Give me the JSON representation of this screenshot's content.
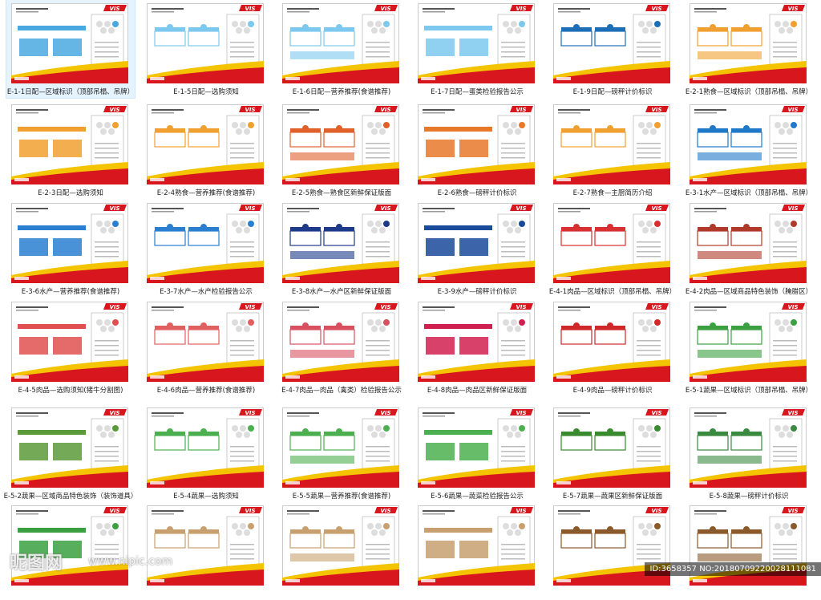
{
  "thumbnail_logo": "VIS",
  "items": [
    {
      "caption": "E-1-1日配—区域标识（顶部吊榻、吊牌）",
      "color": "#4aa8e0",
      "selected": true
    },
    {
      "caption": "E-1-5日配—选购须知",
      "color": "#7cc8ee"
    },
    {
      "caption": "E-1-6日配—营养推荐(食谱推荐)",
      "color": "#7cc8ee"
    },
    {
      "caption": "E-1-7日配—蛋类检验报告公示",
      "color": "#7cc8ee"
    },
    {
      "caption": "E-1-9日配—磅秤计价标识",
      "color": "#1c6fb6"
    },
    {
      "caption": "E-2-1熟食—区域标识（顶部吊榻、吊牌）",
      "color": "#f0a030"
    },
    {
      "caption": "E-2-3日配—选购须知",
      "color": "#f0a030"
    },
    {
      "caption": "E-2-4熟食—营养推荐(食谱推荐)",
      "color": "#f0a030"
    },
    {
      "caption": "E-2-5熟食—熟食区新鲜保证版面",
      "color": "#e0602a"
    },
    {
      "caption": "E-2-6熟食—磅秤计价标识",
      "color": "#e8782a"
    },
    {
      "caption": "E-2-7熟食—主厨简历介绍",
      "color": "#f0a030"
    },
    {
      "caption": "E-3-1水产—区域标识（顶部吊榻、吊牌）",
      "color": "#1f78c8"
    },
    {
      "caption": "E-3-6水产—营养推荐(食谱推荐)",
      "color": "#2a7fd0"
    },
    {
      "caption": "E-3-7水产—水产检验报告公示",
      "color": "#2a7fd0"
    },
    {
      "caption": "E-3-8水产—水产区新鲜保证版面",
      "color": "#1d3a8a"
    },
    {
      "caption": "E-3-9水产—磅秤计价标识",
      "color": "#1a4a9a"
    },
    {
      "caption": "E-4-1肉品—区域标识（顶部吊榻、吊牌）",
      "color": "#d83030"
    },
    {
      "caption": "E-4-2肉品—区域商品特色装饰（腌腊区）",
      "color": "#b03a2a"
    },
    {
      "caption": "E-4-5肉品—选购须知(猪牛分割图)",
      "color": "#e05050"
    },
    {
      "caption": "E-4-6肉品—营养推荐(食谱推荐)",
      "color": "#e06060"
    },
    {
      "caption": "E-4-7肉品—肉品（禽类）检验报告公示",
      "color": "#d85060"
    },
    {
      "caption": "E-4-8肉品—肉品区新鲜保证版面",
      "color": "#d02050"
    },
    {
      "caption": "E-4-9肉品—磅秤计价标识",
      "color": "#d02828"
    },
    {
      "caption": "E-5-1蔬果—区域标识（顶部吊榻、吊牌）",
      "color": "#3aa040"
    },
    {
      "caption": "E-5-2蔬果—区域商品特色装饰（装饰道具）",
      "color": "#5a9a3a"
    },
    {
      "caption": "E-5-4蔬果—选购须知",
      "color": "#4cb050"
    },
    {
      "caption": "E-5-5蔬果—营养推荐(食谱推荐)",
      "color": "#4cb050"
    },
    {
      "caption": "E-5-6蔬果—蔬菜检验报告公示",
      "color": "#4cb050"
    },
    {
      "caption": "E-5-7蔬果—蔬果区新鲜保证版面",
      "color": "#3a8a30"
    },
    {
      "caption": "E-5-8蔬果—磅秤计价标识",
      "color": "#3a8a40"
    },
    {
      "color": "#3aa040"
    },
    {
      "color": "#c8a070"
    },
    {
      "color": "#c8a070"
    },
    {
      "color": "#c8a070"
    },
    {
      "color": "#8a5a2a"
    },
    {
      "color": "#8a5a2a"
    }
  ],
  "watermark": {
    "site": "昵图网",
    "url": "www.nipic.com",
    "id": "ID:3658357 NO:20180709220028111081"
  }
}
